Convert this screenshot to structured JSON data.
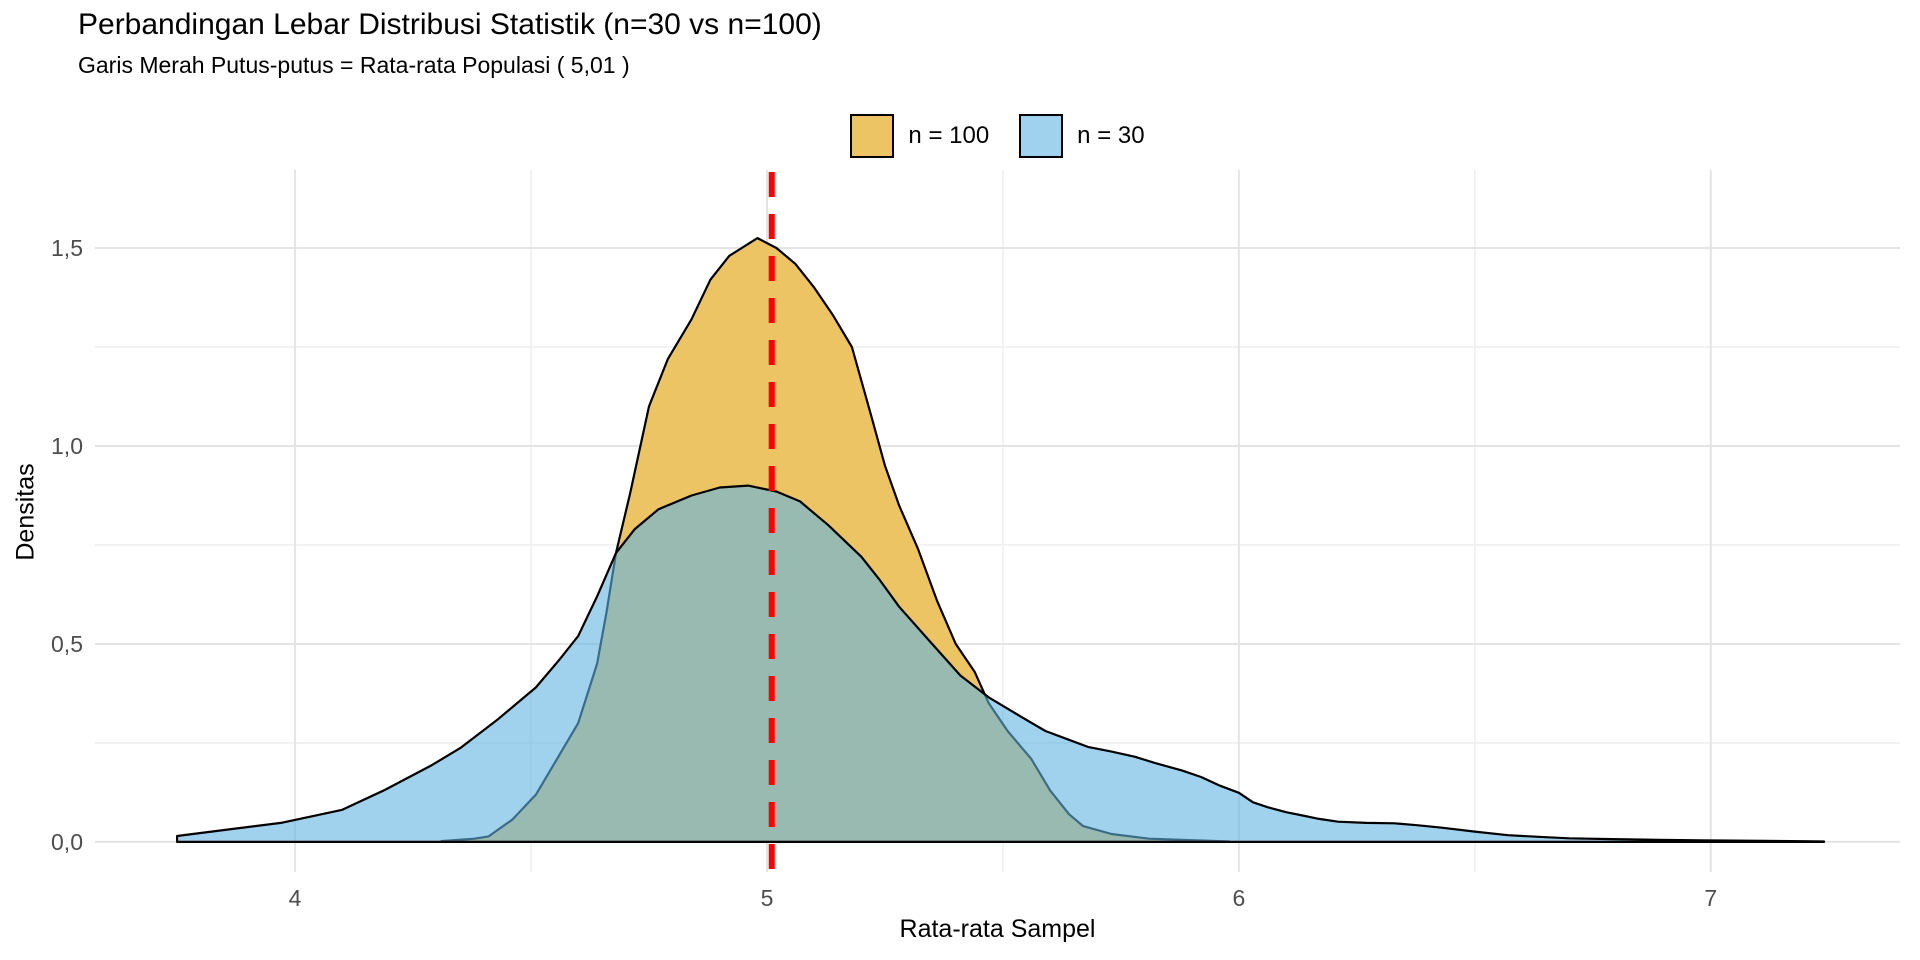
{
  "header": {
    "title": "Perbandingan Lebar Distribusi Statistik (n=30 vs n=100)",
    "subtitle": "Garis Merah Putus-putus = Rata-rata Populasi ( 5,01 )"
  },
  "colors": {
    "background": "#ffffff",
    "grid_major": "#e4e4e4",
    "grid_minor": "#efefef",
    "tick_label": "#4d4d4d",
    "axis_title": "#000000",
    "outline": "#000000",
    "vline_red": "#ff0000",
    "fill_n100": "#edc464",
    "fill_n30_rgba": "rgba(97,180,227,0.6)",
    "swatch_n100": "#edc464",
    "swatch_n30": "#a0d2ee"
  },
  "chart_data": {
    "type": "area",
    "title": "Perbandingan Lebar Distribusi Statistik (n=30 vs n=100)",
    "subtitle": "Garis Merah Putus-putus = Rata-rata Populasi ( 5,01 )",
    "xlabel": "Rata-rata Sampel",
    "ylabel": "Densitas",
    "legend_position": "top",
    "grid": true,
    "xlim": [
      3.576,
      7.401
    ],
    "ylim": [
      -0.076,
      1.697
    ],
    "x_ticks": [
      {
        "value": 4,
        "label": "4"
      },
      {
        "value": 5,
        "label": "5"
      },
      {
        "value": 6,
        "label": "6"
      },
      {
        "value": 7,
        "label": "7"
      }
    ],
    "y_ticks": [
      {
        "value": 0.0,
        "label": "0,0"
      },
      {
        "value": 0.5,
        "label": "0,5"
      },
      {
        "value": 1.0,
        "label": "1,0"
      },
      {
        "value": 1.5,
        "label": "1,5"
      }
    ],
    "x_minor": [
      4.5,
      5.5,
      6.5
    ],
    "y_minor": [
      0.25,
      0.75,
      1.25
    ],
    "vline": {
      "x": 5.01,
      "color": "#ff0000",
      "style": "dashed",
      "meaning": "Rata-rata Populasi"
    },
    "series": [
      {
        "name": "n = 100",
        "fill": "#edc464",
        "swatch": "#edc464",
        "stroke": "#000000",
        "peak": {
          "x": 4.98,
          "density": 1.525
        },
        "points": [
          [
            4.31,
            0.002
          ],
          [
            4.38,
            0.008
          ],
          [
            4.41,
            0.014
          ],
          [
            4.46,
            0.056
          ],
          [
            4.51,
            0.119
          ],
          [
            4.55,
            0.199
          ],
          [
            4.6,
            0.3
          ],
          [
            4.64,
            0.45
          ],
          [
            4.66,
            0.58
          ],
          [
            4.68,
            0.73
          ],
          [
            4.71,
            0.88
          ],
          [
            4.75,
            1.1
          ],
          [
            4.79,
            1.22
          ],
          [
            4.84,
            1.32
          ],
          [
            4.88,
            1.42
          ],
          [
            4.92,
            1.48
          ],
          [
            4.98,
            1.525
          ],
          [
            5.02,
            1.5
          ],
          [
            5.06,
            1.46
          ],
          [
            5.1,
            1.4
          ],
          [
            5.14,
            1.33
          ],
          [
            5.18,
            1.25
          ],
          [
            5.22,
            1.08
          ],
          [
            5.25,
            0.95
          ],
          [
            5.28,
            0.85
          ],
          [
            5.32,
            0.74
          ],
          [
            5.36,
            0.61
          ],
          [
            5.4,
            0.5
          ],
          [
            5.44,
            0.43
          ],
          [
            5.47,
            0.35
          ],
          [
            5.51,
            0.28
          ],
          [
            5.56,
            0.21
          ],
          [
            5.6,
            0.13
          ],
          [
            5.64,
            0.07
          ],
          [
            5.67,
            0.04
          ],
          [
            5.73,
            0.02
          ],
          [
            5.81,
            0.008
          ],
          [
            5.98,
            0.001
          ]
        ]
      },
      {
        "name": "n = 30",
        "fill": "rgba(97,180,227,0.6)",
        "swatch": "#a0d2ee",
        "stroke": "#000000",
        "peak": {
          "x": 4.96,
          "density": 0.9
        },
        "points": [
          [
            3.75,
            0.015
          ],
          [
            3.85,
            0.03
          ],
          [
            3.97,
            0.048
          ],
          [
            4.1,
            0.081
          ],
          [
            4.19,
            0.131
          ],
          [
            4.29,
            0.194
          ],
          [
            4.35,
            0.237
          ],
          [
            4.43,
            0.31
          ],
          [
            4.51,
            0.39
          ],
          [
            4.56,
            0.46
          ],
          [
            4.6,
            0.52
          ],
          [
            4.64,
            0.62
          ],
          [
            4.68,
            0.73
          ],
          [
            4.72,
            0.79
          ],
          [
            4.77,
            0.84
          ],
          [
            4.84,
            0.875
          ],
          [
            4.9,
            0.895
          ],
          [
            4.96,
            0.9
          ],
          [
            5.02,
            0.885
          ],
          [
            5.07,
            0.86
          ],
          [
            5.13,
            0.8
          ],
          [
            5.2,
            0.72
          ],
          [
            5.24,
            0.66
          ],
          [
            5.28,
            0.594
          ],
          [
            5.35,
            0.5
          ],
          [
            5.41,
            0.42
          ],
          [
            5.47,
            0.365
          ],
          [
            5.54,
            0.315
          ],
          [
            5.59,
            0.28
          ],
          [
            5.64,
            0.258
          ],
          [
            5.68,
            0.24
          ],
          [
            5.73,
            0.228
          ],
          [
            5.78,
            0.215
          ],
          [
            5.82,
            0.2
          ],
          [
            5.88,
            0.18
          ],
          [
            5.92,
            0.164
          ],
          [
            5.96,
            0.142
          ],
          [
            6.0,
            0.124
          ],
          [
            6.03,
            0.1
          ],
          [
            6.06,
            0.088
          ],
          [
            6.1,
            0.075
          ],
          [
            6.13,
            0.068
          ],
          [
            6.17,
            0.058
          ],
          [
            6.21,
            0.051
          ],
          [
            6.27,
            0.048
          ],
          [
            6.33,
            0.047
          ],
          [
            6.38,
            0.042
          ],
          [
            6.43,
            0.036
          ],
          [
            6.5,
            0.026
          ],
          [
            6.57,
            0.017
          ],
          [
            6.65,
            0.012
          ],
          [
            6.7,
            0.009
          ],
          [
            6.79,
            0.007
          ],
          [
            6.89,
            0.005
          ],
          [
            6.98,
            0.004
          ],
          [
            7.08,
            0.003
          ],
          [
            7.17,
            0.002
          ],
          [
            7.24,
            0.001
          ]
        ]
      }
    ]
  }
}
